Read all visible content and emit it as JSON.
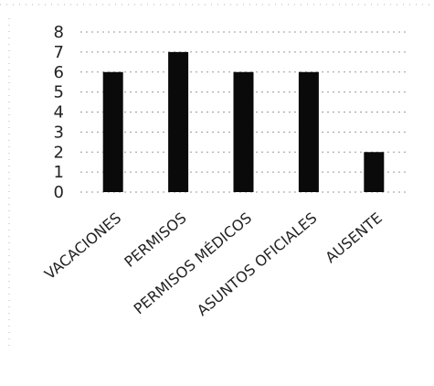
{
  "chart_data": {
    "type": "bar",
    "title": "",
    "xlabel": "",
    "ylabel": "",
    "categories": [
      "VACACIONES",
      "PERMISOS",
      "PERMISOS MÉDICOS",
      "ASUNTOS OFICIALES",
      "AUSENTE"
    ],
    "values": [
      6,
      7,
      6,
      6,
      2
    ],
    "ylim": [
      0,
      8
    ],
    "yticks": [
      "0",
      "1",
      "2",
      "3",
      "4",
      "5",
      "6",
      "7",
      "8"
    ],
    "grid": true,
    "legend": "none",
    "bar_color": "#0a0a0a"
  }
}
